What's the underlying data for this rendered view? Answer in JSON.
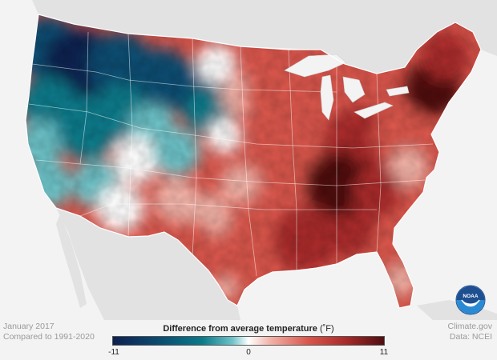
{
  "caption": {
    "period": "January 2017",
    "baseline": "Compared to 1991-2020"
  },
  "legend": {
    "title": "Difference from average temperature",
    "unit": "(˚F)",
    "min_label": "-11",
    "mid_label": "0",
    "max_label": "11",
    "min_value": -11,
    "max_value": 11,
    "colors": [
      "#0e2050",
      "#0a4e72",
      "#0b7a8a",
      "#6cc2c8",
      "#ffffff",
      "#f2b3a8",
      "#d9564c",
      "#a82a2a",
      "#4e0f10"
    ]
  },
  "credit": {
    "source": "Climate.gov",
    "data": "Data: NCEI"
  },
  "logo": {
    "icon": "noaa-logo-icon",
    "text": "NOAA"
  },
  "map": {
    "land_color": "#e2e2e2",
    "water_color": "#f3f3f3",
    "border_color": "#ffffff"
  }
}
